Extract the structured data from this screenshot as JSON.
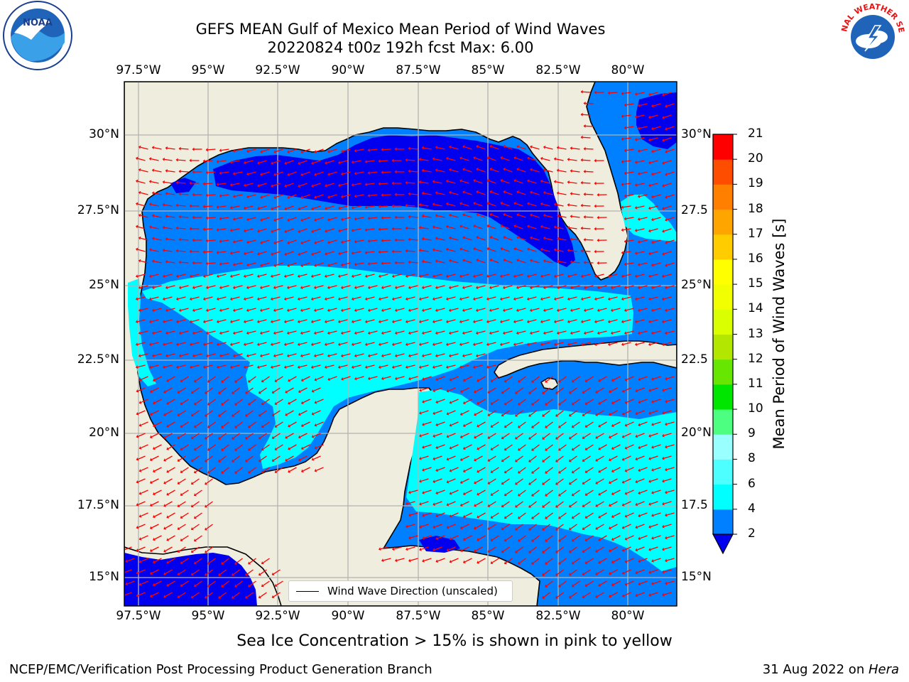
{
  "title": {
    "line1": "GEFS MEAN Gulf of Mexico Mean Period of Wind Waves",
    "line2": "20220824 t00z 192h fcst   Max: 6.00"
  },
  "map": {
    "lon_ticks": [
      "97.5°W",
      "95°W",
      "92.5°W",
      "90°W",
      "87.5°W",
      "85°W",
      "82.5°W",
      "80°W"
    ],
    "lat_ticks_left": [
      "30°N",
      "27.5°N",
      "25°N",
      "22.5°N",
      "20°N",
      "17.5°N",
      "15°N"
    ],
    "lat_ticks_right": [
      "30°N",
      "27.5",
      "25°N",
      "22.5",
      "20°N",
      "17.5",
      "15°N"
    ],
    "legend_label": "Wind Wave Direction (unscaled)",
    "land_color": "#efedde",
    "ocean_colors": {
      "2-4": "#0080ff",
      "4-6": "#00ffff",
      "under-2": "#0000ee"
    },
    "arrow_color": "#ff0000"
  },
  "colorbar": {
    "title": "Mean Period of Wind Waves [s]",
    "levels": [
      "2",
      "4",
      "6",
      "8",
      "9",
      "10",
      "11",
      "12",
      "13",
      "14",
      "15",
      "16",
      "17",
      "18",
      "19",
      "20",
      "21"
    ],
    "colors": [
      "#0080ff",
      "#00ffff",
      "#4dffff",
      "#99ffff",
      "#4dff80",
      "#00e600",
      "#66e600",
      "#b3e600",
      "#d9ff00",
      "#f2ff00",
      "#ffff00",
      "#ffcc00",
      "#ffa500",
      "#ff8000",
      "#ff4d00",
      "#ff0000"
    ],
    "under_color": "#0000ee"
  },
  "caption": "Sea Ice Concentration > 15% is shown in pink to yellow",
  "footer": {
    "left": "NCEP/EMC/Verification Post Processing Product Generation Branch",
    "right_date": "31 Aug 2022 on ",
    "right_host": "Hera"
  },
  "logos": {
    "noaa_text": "NOAA",
    "nws_text": "NATIONAL WEATHER SERVICE"
  }
}
